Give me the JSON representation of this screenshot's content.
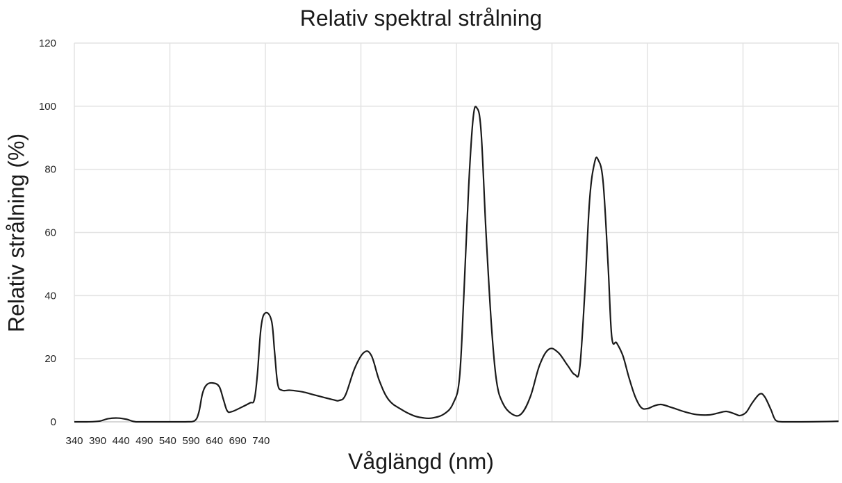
{
  "chart_data": {
    "type": "line",
    "title": "Relativ spektral strålning",
    "xlabel": "Våglängd (nm)",
    "ylabel": "Relativ strålning (%)",
    "ylim": [
      0,
      120
    ],
    "yticks": [
      "0",
      "20",
      "40",
      "60",
      "80",
      "100",
      "120"
    ],
    "xticks": [
      "340",
      "390",
      "440",
      "490",
      "540",
      "590",
      "640",
      "690",
      "740"
    ],
    "grid": true,
    "legend": "none",
    "line_color": "#1a1a1a",
    "series": [
      {
        "points": [
          [
            340,
            0
          ],
          [
            360,
            0
          ],
          [
            380,
            0.2
          ],
          [
            395,
            1.0
          ],
          [
            410,
            1.2
          ],
          [
            425,
            0.8
          ],
          [
            440,
            0
          ],
          [
            470,
            0
          ],
          [
            520,
            0
          ],
          [
            535,
            0.3
          ],
          [
            542,
            3
          ],
          [
            548,
            9
          ],
          [
            555,
            11.8
          ],
          [
            565,
            12.3
          ],
          [
            575,
            11.2
          ],
          [
            582,
            7
          ],
          [
            588,
            3.5
          ],
          [
            595,
            3.2
          ],
          [
            610,
            4.5
          ],
          [
            625,
            6
          ],
          [
            632,
            7
          ],
          [
            637,
            15
          ],
          [
            643,
            30
          ],
          [
            650,
            34.5
          ],
          [
            660,
            32
          ],
          [
            665,
            22
          ],
          [
            670,
            12
          ],
          [
            677,
            10
          ],
          [
            690,
            10
          ],
          [
            710,
            9.5
          ],
          [
            730,
            8.5
          ],
          [
            760,
            7
          ],
          [
            770,
            6.8
          ],
          [
            780,
            8.5
          ],
          [
            795,
            17
          ],
          [
            810,
            22
          ],
          [
            822,
            21
          ],
          [
            835,
            13
          ],
          [
            850,
            7
          ],
          [
            870,
            4
          ],
          [
            890,
            2
          ],
          [
            905,
            1.3
          ],
          [
            920,
            1.2
          ],
          [
            940,
            2.5
          ],
          [
            955,
            6
          ],
          [
            965,
            14
          ],
          [
            972,
            40
          ],
          [
            980,
            75
          ],
          [
            987,
            96
          ],
          [
            993,
            99.5
          ],
          [
            1000,
            92
          ],
          [
            1008,
            60
          ],
          [
            1017,
            30
          ],
          [
            1025,
            13
          ],
          [
            1035,
            6
          ],
          [
            1050,
            2.5
          ],
          [
            1065,
            2.5
          ],
          [
            1080,
            8
          ],
          [
            1095,
            18
          ],
          [
            1110,
            23
          ],
          [
            1125,
            22
          ],
          [
            1140,
            18
          ],
          [
            1152,
            15
          ],
          [
            1160,
            17
          ],
          [
            1168,
            40
          ],
          [
            1176,
            70
          ],
          [
            1184,
            82
          ],
          [
            1190,
            83
          ],
          [
            1198,
            76
          ],
          [
            1206,
            50
          ],
          [
            1212,
            27
          ],
          [
            1220,
            25
          ],
          [
            1230,
            21
          ],
          [
            1240,
            14
          ],
          [
            1250,
            8
          ],
          [
            1260,
            4.5
          ],
          [
            1270,
            4.2
          ],
          [
            1280,
            5
          ],
          [
            1292,
            5.5
          ],
          [
            1310,
            4.5
          ],
          [
            1330,
            3.2
          ],
          [
            1350,
            2.3
          ],
          [
            1370,
            2.2
          ],
          [
            1385,
            2.8
          ],
          [
            1398,
            3.3
          ],
          [
            1412,
            2.5
          ],
          [
            1420,
            2
          ],
          [
            1430,
            3
          ],
          [
            1440,
            6
          ],
          [
            1452,
            8.8
          ],
          [
            1460,
            8
          ],
          [
            1470,
            4
          ],
          [
            1478,
            0.5
          ],
          [
            1490,
            0
          ],
          [
            1520,
            0
          ],
          [
            1560,
            0.1
          ],
          [
            1580,
            0.2
          ]
        ]
      }
    ]
  }
}
